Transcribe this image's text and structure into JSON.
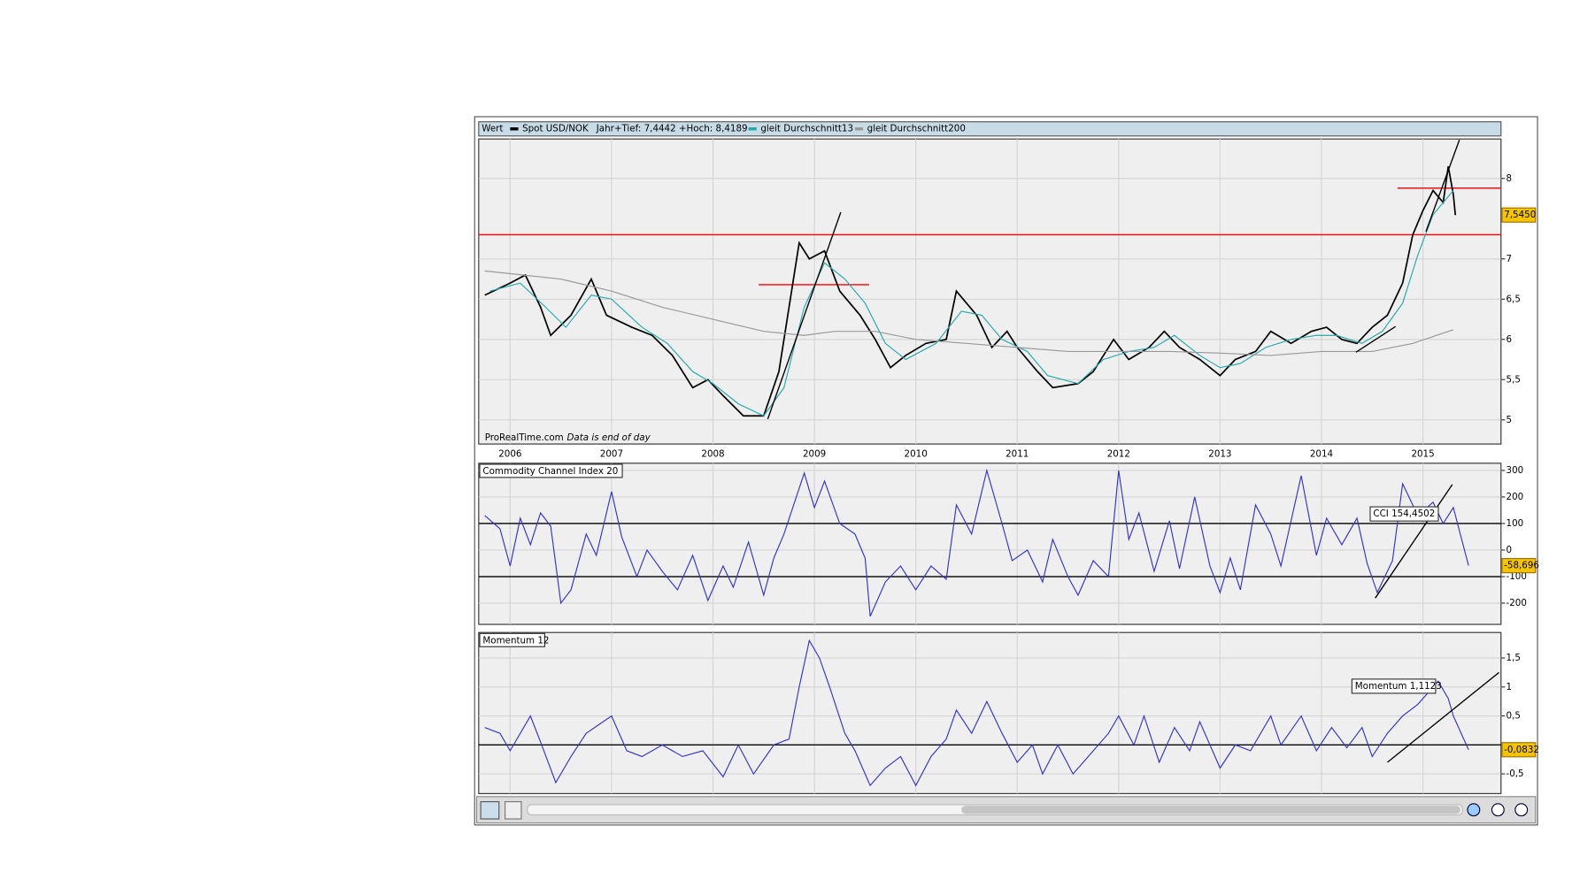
{
  "chart_data": [
    {
      "type": "line",
      "header_label": "Wert",
      "range_note": "Jahr+Tief: 7,4442 +Hoch: 8,4189",
      "source": "ProRealTime.com",
      "note": "Data is end of day",
      "xlim": [
        2005.69,
        2015.77
      ],
      "xticks": [
        2006,
        2007,
        2008,
        2009,
        2010,
        2011,
        2012,
        2013,
        2014,
        2015
      ],
      "ylim": [
        4.7,
        8.49
      ],
      "yticks": [
        {
          "value": 5,
          "label": "5"
        },
        {
          "value": 5.5,
          "label": "5,5"
        },
        {
          "value": 6,
          "label": "6"
        },
        {
          "value": 6.5,
          "label": "6,5"
        },
        {
          "value": 7,
          "label": "7"
        },
        {
          "value": 8,
          "label": "8"
        }
      ],
      "grid": true,
      "series": [
        {
          "name": "Spot USD/NOK",
          "color": "#000000",
          "x": [
            2005.75,
            2006.0,
            2006.15,
            2006.3,
            2006.4,
            2006.6,
            2006.8,
            2006.95,
            2007.2,
            2007.4,
            2007.6,
            2007.8,
            2007.95,
            2008.1,
            2008.3,
            2008.5,
            2008.65,
            2008.75,
            2008.85,
            2008.95,
            2009.1,
            2009.25,
            2009.45,
            2009.6,
            2009.75,
            2009.9,
            2010.1,
            2010.3,
            2010.4,
            2010.6,
            2010.75,
            2010.9,
            2011.0,
            2011.2,
            2011.35,
            2011.6,
            2011.75,
            2011.95,
            2012.1,
            2012.3,
            2012.45,
            2012.6,
            2012.8,
            2013.0,
            2013.15,
            2013.35,
            2013.5,
            2013.7,
            2013.9,
            2014.05,
            2014.2,
            2014.35,
            2014.5,
            2014.65,
            2014.8,
            2014.9,
            2015.0,
            2015.1,
            2015.2,
            2015.25,
            2015.3,
            2015.32
          ],
          "values": [
            6.55,
            6.7,
            6.8,
            6.4,
            6.05,
            6.3,
            6.75,
            6.3,
            6.15,
            6.05,
            5.8,
            5.4,
            5.5,
            5.3,
            5.05,
            5.05,
            5.6,
            6.4,
            7.2,
            7.0,
            7.1,
            6.6,
            6.3,
            6.0,
            5.65,
            5.8,
            5.95,
            6.0,
            6.6,
            6.3,
            5.9,
            6.1,
            5.9,
            5.6,
            5.4,
            5.45,
            5.6,
            6.0,
            5.75,
            5.9,
            6.1,
            5.9,
            5.75,
            5.55,
            5.75,
            5.85,
            6.1,
            5.95,
            6.1,
            6.15,
            6.0,
            5.95,
            6.15,
            6.3,
            6.7,
            7.3,
            7.6,
            7.85,
            7.7,
            8.15,
            7.8,
            7.545
          ]
        },
        {
          "name": "gleit Durchschnitt13",
          "color": "#22aaaa",
          "x": [
            2005.8,
            2006.1,
            2006.35,
            2006.55,
            2006.8,
            2007.0,
            2007.3,
            2007.55,
            2007.8,
            2008.0,
            2008.25,
            2008.5,
            2008.7,
            2008.9,
            2009.1,
            2009.3,
            2009.5,
            2009.7,
            2009.9,
            2010.2,
            2010.45,
            2010.65,
            2010.85,
            2011.1,
            2011.3,
            2011.6,
            2011.85,
            2012.1,
            2012.35,
            2012.55,
            2012.8,
            2013.0,
            2013.2,
            2013.45,
            2013.7,
            2013.95,
            2014.15,
            2014.4,
            2014.6,
            2014.8,
            2014.95,
            2015.1,
            2015.3
          ],
          "values": [
            6.6,
            6.7,
            6.4,
            6.15,
            6.55,
            6.5,
            6.15,
            5.95,
            5.6,
            5.45,
            5.2,
            5.05,
            5.4,
            6.4,
            6.95,
            6.75,
            6.45,
            5.95,
            5.75,
            5.95,
            6.35,
            6.3,
            6.0,
            5.85,
            5.55,
            5.45,
            5.75,
            5.85,
            5.9,
            6.05,
            5.8,
            5.65,
            5.7,
            5.9,
            6.0,
            6.05,
            6.05,
            5.95,
            6.1,
            6.45,
            7.05,
            7.55,
            7.85
          ]
        },
        {
          "name": "gleit Durchschnitt200",
          "color": "#999999",
          "x": [
            2005.75,
            2006.5,
            2007.0,
            2007.5,
            2008.0,
            2008.5,
            2008.9,
            2009.2,
            2009.6,
            2010.0,
            2010.5,
            2011.0,
            2011.5,
            2012.0,
            2012.5,
            2013.0,
            2013.5,
            2014.0,
            2014.5,
            2014.9,
            2015.3
          ],
          "values": [
            6.85,
            6.75,
            6.6,
            6.4,
            6.25,
            6.1,
            6.05,
            6.1,
            6.1,
            6.0,
            5.95,
            5.9,
            5.85,
            5.85,
            5.85,
            5.83,
            5.8,
            5.85,
            5.85,
            5.95,
            6.12
          ]
        }
      ],
      "hlines": [
        {
          "value": 7.3,
          "x": [
            2005.69,
            2015.77
          ],
          "color": "#ff0000"
        },
        {
          "value": 6.68,
          "x": [
            2008.45,
            2009.54
          ],
          "color": "#ff0000"
        },
        {
          "value": 7.88,
          "x": [
            2014.75,
            2015.77
          ],
          "color": "#ff0000"
        }
      ],
      "trendlines": [
        {
          "x": [
            2008.54,
            2009.26
          ],
          "y": [
            5.01,
            7.58
          ]
        },
        {
          "x": [
            2014.34,
            2014.73
          ],
          "y": [
            5.84,
            6.16
          ]
        },
        {
          "x": [
            2015.03,
            2015.36
          ],
          "y": [
            7.34,
            8.48
          ]
        }
      ],
      "last_value": {
        "value": 7.545,
        "label": "7,5450"
      }
    },
    {
      "type": "line",
      "title": "Commodity Channel Index 20",
      "xlim": [
        2005.69,
        2015.77
      ],
      "xticks": [
        2006,
        2007,
        2008,
        2009,
        2010,
        2011,
        2012,
        2013,
        2014,
        2015
      ],
      "ylim": [
        -280,
        327
      ],
      "yticks": [
        -200,
        -100,
        0,
        100,
        200,
        300
      ],
      "grid": true,
      "series": [
        {
          "name": "CCI",
          "color": "#3333cc",
          "x": [
            2005.75,
            2005.9,
            2006.0,
            2006.1,
            2006.2,
            2006.3,
            2006.4,
            2006.5,
            2006.6,
            2006.75,
            2006.85,
            2007.0,
            2007.1,
            2007.25,
            2007.35,
            2007.5,
            2007.65,
            2007.8,
            2007.95,
            2008.1,
            2008.2,
            2008.35,
            2008.5,
            2008.6,
            2008.7,
            2008.9,
            2009.0,
            2009.1,
            2009.25,
            2009.4,
            2009.5,
            2009.55,
            2009.7,
            2009.85,
            2010.0,
            2010.15,
            2010.3,
            2010.4,
            2010.55,
            2010.7,
            2010.85,
            2010.95,
            2011.1,
            2011.25,
            2011.35,
            2011.5,
            2011.6,
            2011.75,
            2011.9,
            2012.0,
            2012.1,
            2012.2,
            2012.35,
            2012.5,
            2012.6,
            2012.75,
            2012.9,
            2013.0,
            2013.1,
            2013.2,
            2013.35,
            2013.5,
            2013.6,
            2013.8,
            2013.95,
            2014.05,
            2014.2,
            2014.35,
            2014.45,
            2014.55,
            2014.7,
            2014.8,
            2014.95,
            2015.1,
            2015.2,
            2015.3,
            2015.45
          ],
          "values": [
            130,
            80,
            -60,
            120,
            20,
            140,
            90,
            -200,
            -150,
            60,
            -20,
            220,
            50,
            -100,
            0,
            -80,
            -150,
            -20,
            -190,
            -60,
            -140,
            30,
            -170,
            -30,
            60,
            290,
            160,
            260,
            100,
            60,
            -30,
            -250,
            -120,
            -60,
            -150,
            -60,
            -110,
            170,
            60,
            300,
            100,
            -40,
            0,
            -120,
            40,
            -100,
            -170,
            -40,
            -100,
            300,
            40,
            140,
            -80,
            110,
            -70,
            200,
            -60,
            -160,
            -30,
            -150,
            170,
            60,
            -60,
            280,
            -20,
            120,
            20,
            120,
            -50,
            -160,
            -40,
            250,
            130,
            180,
            100,
            160,
            -58.696
          ]
        }
      ],
      "hlines": [
        {
          "value": 100,
          "x": [
            2005.69,
            2015.77
          ],
          "color": "#000000"
        },
        {
          "value": -100,
          "x": [
            2005.69,
            2015.77
          ],
          "color": "#000000"
        }
      ],
      "trendlines": [
        {
          "x": [
            2014.53,
            2015.29
          ],
          "y": [
            -181,
            247
          ]
        }
      ],
      "annotation": "CCI 154,4502",
      "last_value": {
        "value": -58.696,
        "label": "-58,696"
      }
    },
    {
      "type": "line",
      "title": "Momentum 12",
      "xlim": [
        2005.69,
        2015.77
      ],
      "xticks": [
        2006,
        2007,
        2008,
        2009,
        2010,
        2011,
        2012,
        2013,
        2014,
        2015
      ],
      "ylim": [
        -0.84,
        1.94
      ],
      "yticks": [
        {
          "value": -0.5,
          "label": "-0,5"
        },
        {
          "value": 0.5,
          "label": "0,5"
        },
        1,
        {
          "value": 1.5,
          "label": "1,5"
        }
      ],
      "grid": true,
      "series": [
        {
          "name": "Momentum",
          "color": "#3333cc",
          "x": [
            2005.75,
            2005.9,
            2006.0,
            2006.2,
            2006.3,
            2006.45,
            2006.6,
            2006.75,
            2007.0,
            2007.15,
            2007.3,
            2007.5,
            2007.7,
            2007.9,
            2008.1,
            2008.25,
            2008.4,
            2008.6,
            2008.75,
            2008.85,
            2008.95,
            2009.05,
            2009.15,
            2009.3,
            2009.4,
            2009.55,
            2009.7,
            2009.85,
            2010.0,
            2010.15,
            2010.3,
            2010.4,
            2010.55,
            2010.7,
            2010.85,
            2011.0,
            2011.15,
            2011.25,
            2011.4,
            2011.55,
            2011.7,
            2011.9,
            2012.0,
            2012.15,
            2012.25,
            2012.4,
            2012.55,
            2012.7,
            2012.8,
            2013.0,
            2013.15,
            2013.3,
            2013.5,
            2013.6,
            2013.8,
            2013.95,
            2014.1,
            2014.25,
            2014.4,
            2014.5,
            2014.65,
            2014.8,
            2014.95,
            2015.05,
            2015.15,
            2015.25,
            2015.3,
            2015.45
          ],
          "values": [
            0.3,
            0.2,
            -0.1,
            0.5,
            0.05,
            -0.65,
            -0.2,
            0.2,
            0.5,
            -0.1,
            -0.2,
            0.0,
            -0.2,
            -0.1,
            -0.55,
            0.0,
            -0.5,
            0.0,
            0.1,
            1.0,
            1.8,
            1.5,
            1.0,
            0.2,
            -0.1,
            -0.7,
            -0.4,
            -0.2,
            -0.7,
            -0.2,
            0.1,
            0.6,
            0.2,
            0.75,
            0.2,
            -0.3,
            0.0,
            -0.5,
            0.0,
            -0.5,
            -0.2,
            0.2,
            0.5,
            0.0,
            0.5,
            -0.3,
            0.3,
            -0.1,
            0.4,
            -0.4,
            0.0,
            -0.1,
            0.5,
            0.0,
            0.5,
            -0.1,
            0.3,
            -0.05,
            0.3,
            -0.2,
            0.2,
            0.5,
            0.7,
            0.9,
            1.1,
            0.8,
            0.5,
            -0.0832
          ]
        }
      ],
      "hlines": [
        {
          "value": 0,
          "x": [
            2005.69,
            2015.77
          ],
          "color": "#000000"
        }
      ],
      "trendlines": [
        {
          "x": [
            2014.65,
            2015.75
          ],
          "y": [
            -0.3,
            1.25
          ]
        }
      ],
      "annotation": "Momentum 1,1123",
      "last_value": {
        "value": -0.0832,
        "label": "-0,0832"
      }
    }
  ]
}
